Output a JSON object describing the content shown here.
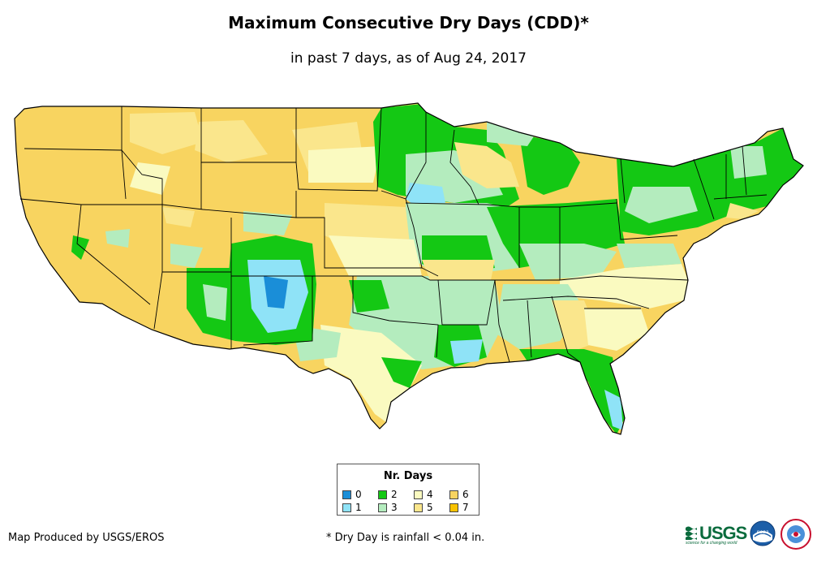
{
  "title": "Maximum Consecutive Dry Days (CDD)*",
  "subtitle": "in past 7 days, as of Aug 24, 2017",
  "legend": {
    "title": "Nr. Days",
    "items": [
      {
        "label": "0",
        "color": "#1a8ed8"
      },
      {
        "label": "1",
        "color": "#8fe3f7"
      },
      {
        "label": "2",
        "color": "#14c814"
      },
      {
        "label": "3",
        "color": "#b4ecbe"
      },
      {
        "label": "4",
        "color": "#fafac0"
      },
      {
        "label": "5",
        "color": "#fae68c"
      },
      {
        "label": "6",
        "color": "#f8d460"
      },
      {
        "label": "7",
        "color": "#f8c200"
      }
    ]
  },
  "credit": "Map Produced by USGS/EROS",
  "footnote": "* Dry Day is rainfall < 0.04 in.",
  "logos": {
    "usgs": {
      "text": "USGS",
      "tagline": "science for a changing world"
    },
    "noaa": {
      "text": "noaa"
    }
  },
  "colors": {
    "land_default": "#f8d460",
    "state_border": "#000000"
  }
}
